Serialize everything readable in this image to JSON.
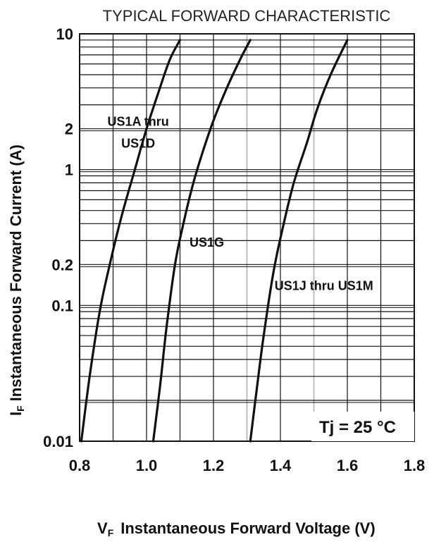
{
  "chart_data": {
    "type": "line",
    "title": "TYPICAL FORWARD CHARACTERISTIC",
    "xlabel": {
      "symbol": "V",
      "subscript": "F",
      "text": "Instantaneous Forward Voltage (V)"
    },
    "ylabel": {
      "symbol": "I",
      "subscript": "F",
      "text": "Instantaneous Forward Current (A)"
    },
    "xlim": [
      0.8,
      1.8
    ],
    "ylim": [
      0.01,
      10
    ],
    "y_scale": "log",
    "grid": true,
    "x_ticks": [
      "0.8",
      "1.0",
      "1.2",
      "1.4",
      "1.6",
      "1.8"
    ],
    "x_tick_values": [
      0.8,
      1.0,
      1.2,
      1.4,
      1.6,
      1.8
    ],
    "y_ticks": [
      "10",
      "2",
      "1",
      "0.2",
      "0.1",
      "0.01"
    ],
    "y_tick_values": [
      10,
      2,
      1,
      0.2,
      0.1,
      0.01
    ],
    "annotation": "Tj = 25 °C",
    "series": [
      {
        "name": "US1A thru US1D",
        "label_lines": [
          "US1A thru",
          "US1D"
        ],
        "label_anchor": [
          0.975,
          2.1
        ],
        "x": [
          0.805,
          0.83,
          0.86,
          0.89,
          0.925,
          0.965,
          1.0,
          1.04,
          1.07,
          1.1
        ],
        "y": [
          0.01,
          0.03,
          0.09,
          0.2,
          0.45,
          1.0,
          2.0,
          4.0,
          6.5,
          9.0
        ]
      },
      {
        "name": "US1G",
        "label_lines": [
          "US1G"
        ],
        "label_anchor": [
          1.18,
          0.27
        ],
        "x": [
          1.02,
          1.04,
          1.06,
          1.085,
          1.11,
          1.14,
          1.17,
          1.2,
          1.24,
          1.28,
          1.31
        ],
        "y": [
          0.01,
          0.025,
          0.07,
          0.2,
          0.4,
          0.8,
          1.4,
          2.3,
          4.0,
          6.5,
          9.0
        ]
      },
      {
        "name": "US1J thru US1M",
        "label_lines": [
          "US1J thru US1M"
        ],
        "label_anchor": [
          1.53,
          0.13
        ],
        "x": [
          1.31,
          1.33,
          1.35,
          1.38,
          1.41,
          1.44,
          1.48,
          1.51,
          1.55,
          1.6
        ],
        "y": [
          0.01,
          0.025,
          0.06,
          0.18,
          0.4,
          0.8,
          1.6,
          2.8,
          5.0,
          9.0
        ]
      }
    ],
    "colors": {
      "curve": "#111111",
      "grid": "#111111",
      "frame": "#111111"
    }
  }
}
